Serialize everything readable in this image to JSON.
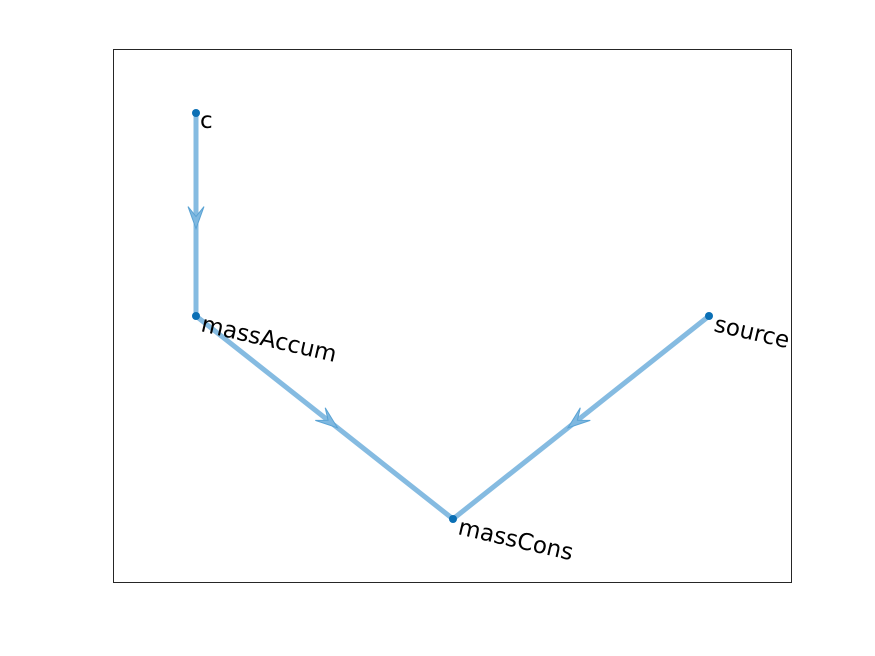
{
  "graph": {
    "type": "directed-graph",
    "colors": {
      "edge": "#7fb8e0",
      "node": "#0a6fb5",
      "axes_border": "#262626",
      "background": "#ffffff"
    },
    "nodes": [
      {
        "id": "c",
        "label": "c"
      },
      {
        "id": "massAccum",
        "label": "massAccum"
      },
      {
        "id": "massCons",
        "label": "massCons"
      },
      {
        "id": "source",
        "label": "source"
      }
    ],
    "edges": [
      {
        "from": "c",
        "to": "massAccum"
      },
      {
        "from": "massAccum",
        "to": "massCons"
      },
      {
        "from": "source",
        "to": "massCons"
      }
    ]
  }
}
